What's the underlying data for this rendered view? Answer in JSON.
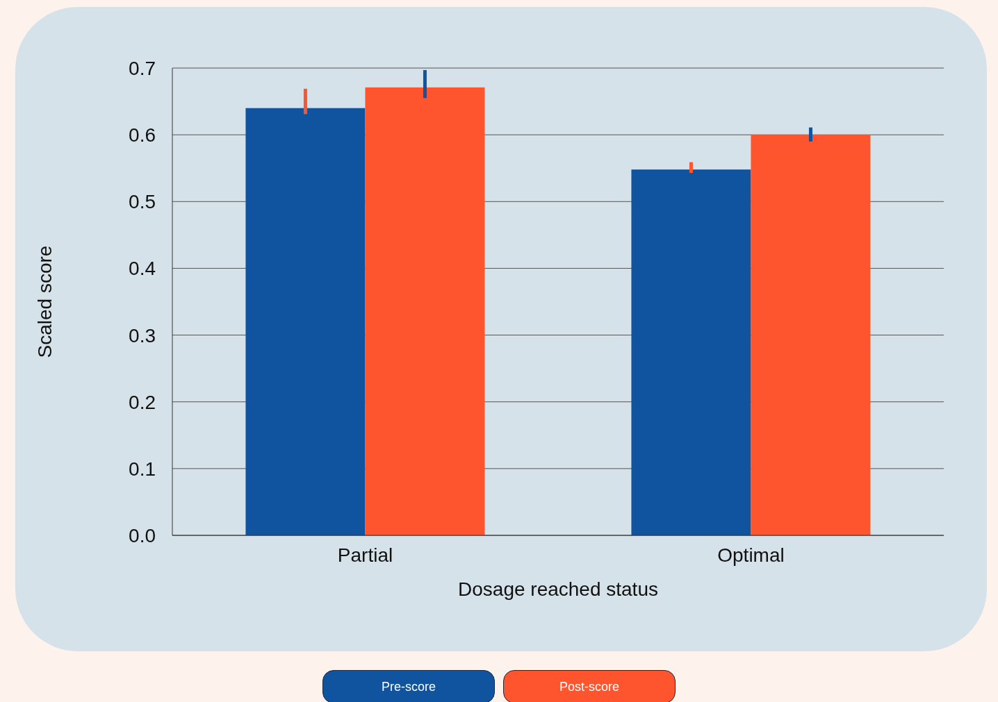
{
  "chart_data": {
    "type": "bar",
    "xlabel": "Dosage reached status",
    "ylabel": "Scaled score",
    "categories": [
      "Partial",
      "Optimal"
    ],
    "series": [
      {
        "name": "Pre-score",
        "color": "#10539f",
        "values": [
          0.64,
          0.548
        ],
        "errors": [
          [
            0.631,
            0.669
          ],
          [
            0.543,
            0.559
          ]
        ]
      },
      {
        "name": "Post-score",
        "color": "#ff552e",
        "values": [
          0.671,
          0.6
        ],
        "errors": [
          [
            0.655,
            0.697
          ],
          [
            0.59,
            0.611
          ]
        ]
      }
    ],
    "ylim": [
      0,
      0.7
    ],
    "yticks": [
      {
        "value": 0,
        "label": "0.0"
      },
      0.1,
      0.2,
      0.3,
      0.4,
      0.5,
      0.6,
      0.7
    ],
    "grid": "y",
    "legend": "bottom"
  }
}
